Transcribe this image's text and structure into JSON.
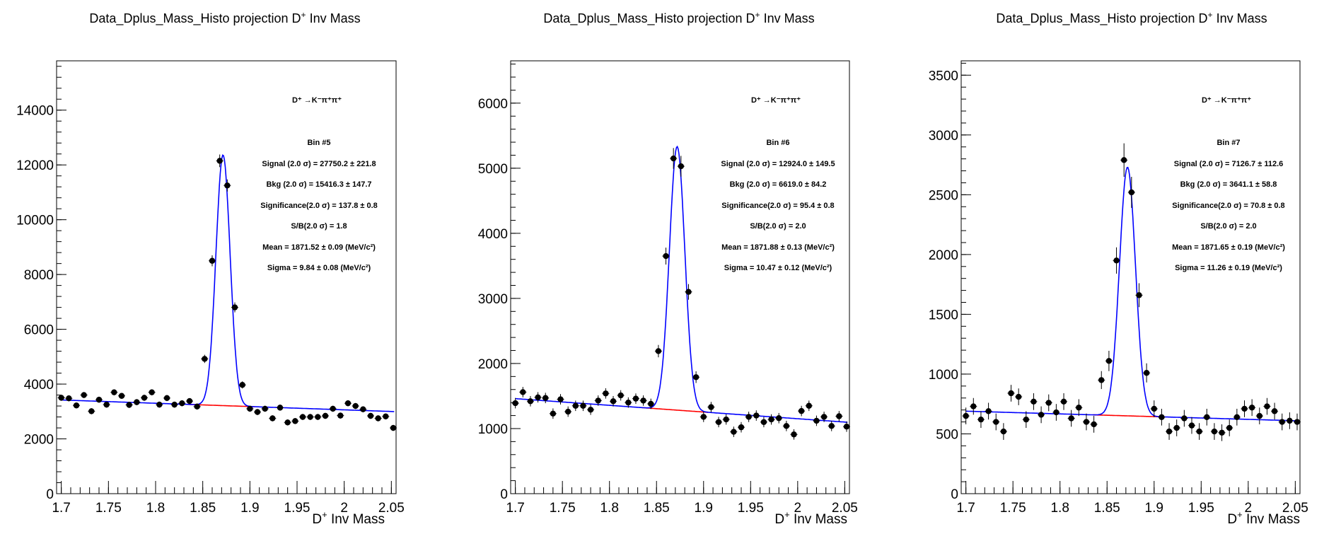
{
  "chart_data": [
    {
      "type": "scatter",
      "title": "Data_Dplus_Mass_Histo projection  D",
      "title_sup": "+",
      "title_suffix": " Inv Mass",
      "xlabel": "D",
      "xlabel_sup": "+",
      "xlabel_suffix": " Inv Mass",
      "xlim": [
        1.695,
        2.055
      ],
      "ylim": [
        0,
        15800
      ],
      "xticks": [
        1.7,
        1.75,
        1.8,
        1.85,
        1.9,
        1.95,
        2,
        2.05
      ],
      "xtick_labels": [
        "1.7",
        "1.75",
        "1.8",
        "1.85",
        "1.9",
        "1.95",
        "2",
        "2.05"
      ],
      "yticks": [
        0,
        2000,
        4000,
        6000,
        8000,
        10000,
        12000,
        14000
      ],
      "ytick_labels": [
        "0",
        "2000",
        "4000",
        "6000",
        "8000",
        "10000",
        "12000",
        "14000"
      ],
      "decay_label": "D⁺ →K⁻π⁺π⁺",
      "stats": [
        "Bin #5",
        "Signal (2.0 σ) =  27750.2 ± 221.8",
        "Bkg (2.0 σ) =  15416.3 ± 147.7",
        "Significance(2.0 σ) =  137.8 ± 0.8",
        "S/B(2.0 σ) =  1.8",
        "Mean = 1871.52 ± 0.09 (MeV/c²)",
        "Sigma = 9.84 ± 0.08 (MeV/c²)"
      ],
      "x": [
        1.7,
        1.708,
        1.716,
        1.724,
        1.732,
        1.74,
        1.748,
        1.756,
        1.764,
        1.772,
        1.78,
        1.788,
        1.796,
        1.804,
        1.812,
        1.82,
        1.828,
        1.836,
        1.844,
        1.852,
        1.86,
        1.868,
        1.876,
        1.884,
        1.892,
        1.9,
        1.908,
        1.916,
        1.924,
        1.932,
        1.94,
        1.948,
        1.956,
        1.964,
        1.972,
        1.98,
        1.988,
        1.996,
        2.004,
        2.012,
        2.02,
        2.028,
        2.036,
        2.044,
        2.052
      ],
      "y": [
        3500,
        3480,
        3220,
        3600,
        3010,
        3430,
        3250,
        3700,
        3570,
        3240,
        3340,
        3500,
        3700,
        3250,
        3490,
        3250,
        3300,
        3380,
        3180,
        4920,
        8500,
        12150,
        11250,
        6800,
        3970,
        3100,
        2980,
        3100,
        2750,
        3140,
        2600,
        2650,
        2800,
        2800,
        2800,
        2840,
        3100,
        2850,
        3300,
        3200,
        3080,
        2840,
        2750,
        2820,
        2400
      ],
      "yerr": [
        110,
        110,
        110,
        110,
        110,
        110,
        110,
        110,
        110,
        110,
        110,
        110,
        110,
        110,
        110,
        110,
        110,
        110,
        110,
        150,
        200,
        230,
        220,
        180,
        130,
        110,
        110,
        110,
        110,
        110,
        110,
        110,
        110,
        110,
        110,
        110,
        110,
        110,
        110,
        110,
        110,
        110,
        110,
        110,
        110
      ],
      "fit": {
        "bkg_a": 3420,
        "bkg_b": 3000,
        "amp": 9150,
        "mean": 1.8715,
        "sigma": 0.0075
      }
    },
    {
      "type": "scatter",
      "title": "Data_Dplus_Mass_Histo projection  D",
      "title_sup": "+",
      "title_suffix": " Inv Mass",
      "xlabel": "D",
      "xlabel_sup": "+",
      "xlabel_suffix": " Inv Mass",
      "xlim": [
        1.695,
        2.055
      ],
      "ylim": [
        0,
        6650
      ],
      "xticks": [
        1.7,
        1.75,
        1.8,
        1.85,
        1.9,
        1.95,
        2,
        2.05
      ],
      "xtick_labels": [
        "1.7",
        "1.75",
        "1.8",
        "1.85",
        "1.9",
        "1.95",
        "2",
        "2.05"
      ],
      "yticks": [
        0,
        1000,
        2000,
        3000,
        4000,
        5000,
        6000
      ],
      "ytick_labels": [
        "0",
        "1000",
        "2000",
        "3000",
        "4000",
        "5000",
        "6000"
      ],
      "decay_label": "D⁺ →K⁻π⁺π⁺",
      "stats": [
        "Bin #6",
        "Signal (2.0 σ) =  12924.0 ± 149.5",
        "Bkg (2.0 σ) =  6619.0 ± 84.2",
        "Significance(2.0 σ) =  95.4 ± 0.8",
        "S/B(2.0 σ) =  2.0",
        "Mean = 1871.88 ± 0.13 (MeV/c²)",
        "Sigma = 10.47 ± 0.12 (MeV/c²)"
      ],
      "x": [
        1.7,
        1.708,
        1.716,
        1.724,
        1.732,
        1.74,
        1.748,
        1.756,
        1.764,
        1.772,
        1.78,
        1.788,
        1.796,
        1.804,
        1.812,
        1.82,
        1.828,
        1.836,
        1.844,
        1.852,
        1.86,
        1.868,
        1.876,
        1.884,
        1.892,
        1.9,
        1.908,
        1.916,
        1.924,
        1.932,
        1.94,
        1.948,
        1.956,
        1.964,
        1.972,
        1.98,
        1.988,
        1.996,
        2.004,
        2.012,
        2.02,
        2.028,
        2.036,
        2.044,
        2.052
      ],
      "y": [
        1390,
        1560,
        1420,
        1480,
        1470,
        1230,
        1450,
        1260,
        1350,
        1350,
        1290,
        1430,
        1540,
        1420,
        1510,
        1400,
        1460,
        1430,
        1380,
        2190,
        3650,
        5150,
        5030,
        3100,
        1790,
        1180,
        1330,
        1100,
        1140,
        950,
        1020,
        1180,
        1200,
        1100,
        1140,
        1160,
        1040,
        910,
        1270,
        1350,
        1120,
        1180,
        1040,
        1190,
        1030
      ],
      "yerr": [
        80,
        80,
        80,
        80,
        80,
        80,
        80,
        80,
        80,
        80,
        80,
        80,
        80,
        80,
        80,
        80,
        80,
        80,
        80,
        95,
        130,
        160,
        160,
        120,
        90,
        80,
        80,
        80,
        80,
        80,
        80,
        80,
        80,
        80,
        80,
        80,
        80,
        80,
        80,
        80,
        80,
        80,
        80,
        80,
        80
      ],
      "fit": {
        "bkg_a": 1460,
        "bkg_b": 1100,
        "amp": 4050,
        "mean": 1.8719,
        "sigma": 0.0082
      }
    },
    {
      "type": "scatter",
      "title": "Data_Dplus_Mass_Histo projection  D",
      "title_sup": "+",
      "title_suffix": " Inv Mass",
      "xlabel": "D",
      "xlabel_sup": "+",
      "xlabel_suffix": " Inv Mass",
      "xlim": [
        1.695,
        2.055
      ],
      "ylim": [
        0,
        3620
      ],
      "xticks": [
        1.7,
        1.75,
        1.8,
        1.85,
        1.9,
        1.95,
        2,
        2.05
      ],
      "xtick_labels": [
        "1.7",
        "1.75",
        "1.8",
        "1.85",
        "1.9",
        "1.95",
        "2",
        "2.05"
      ],
      "yticks": [
        0,
        500,
        1000,
        1500,
        2000,
        2500,
        3000,
        3500
      ],
      "ytick_labels": [
        "0",
        "500",
        "1000",
        "1500",
        "2000",
        "2500",
        "3000",
        "3500"
      ],
      "decay_label": "D⁺ →K⁻π⁺π⁺",
      "stats": [
        "Bin #7",
        "Signal (2.0 σ) =  7126.7 ± 112.6",
        "Bkg (2.0 σ) =  3641.1 ± 58.8",
        "Significance(2.0 σ) =  70.8 ± 0.8",
        "S/B(2.0 σ) =  2.0",
        "Mean = 1871.65 ± 0.19 (MeV/c²)",
        "Sigma = 11.26 ± 0.19 (MeV/c²)"
      ],
      "x": [
        1.7,
        1.708,
        1.716,
        1.724,
        1.732,
        1.74,
        1.748,
        1.756,
        1.764,
        1.772,
        1.78,
        1.788,
        1.796,
        1.804,
        1.812,
        1.82,
        1.828,
        1.836,
        1.844,
        1.852,
        1.86,
        1.868,
        1.876,
        1.884,
        1.892,
        1.9,
        1.908,
        1.916,
        1.924,
        1.932,
        1.94,
        1.948,
        1.956,
        1.964,
        1.972,
        1.98,
        1.988,
        1.996,
        2.004,
        2.012,
        2.02,
        2.028,
        2.036,
        2.044,
        2.052
      ],
      "y": [
        650,
        730,
        620,
        690,
        600,
        520,
        840,
        810,
        620,
        770,
        660,
        760,
        680,
        770,
        630,
        720,
        600,
        580,
        950,
        1110,
        1950,
        2790,
        2520,
        1660,
        1010,
        710,
        640,
        520,
        550,
        630,
        570,
        520,
        640,
        520,
        510,
        550,
        640,
        710,
        720,
        650,
        730,
        690,
        600,
        610,
        600
      ],
      "yerr": [
        70,
        70,
        70,
        70,
        70,
        70,
        70,
        70,
        70,
        70,
        70,
        70,
        70,
        70,
        70,
        70,
        70,
        70,
        75,
        85,
        110,
        140,
        130,
        100,
        80,
        70,
        70,
        70,
        70,
        70,
        70,
        70,
        70,
        70,
        70,
        70,
        70,
        70,
        70,
        70,
        70,
        70,
        70,
        70,
        70
      ],
      "fit": {
        "bkg_a": 690,
        "bkg_b": 610,
        "amp": 2080,
        "mean": 1.8717,
        "sigma": 0.0085
      }
    }
  ]
}
